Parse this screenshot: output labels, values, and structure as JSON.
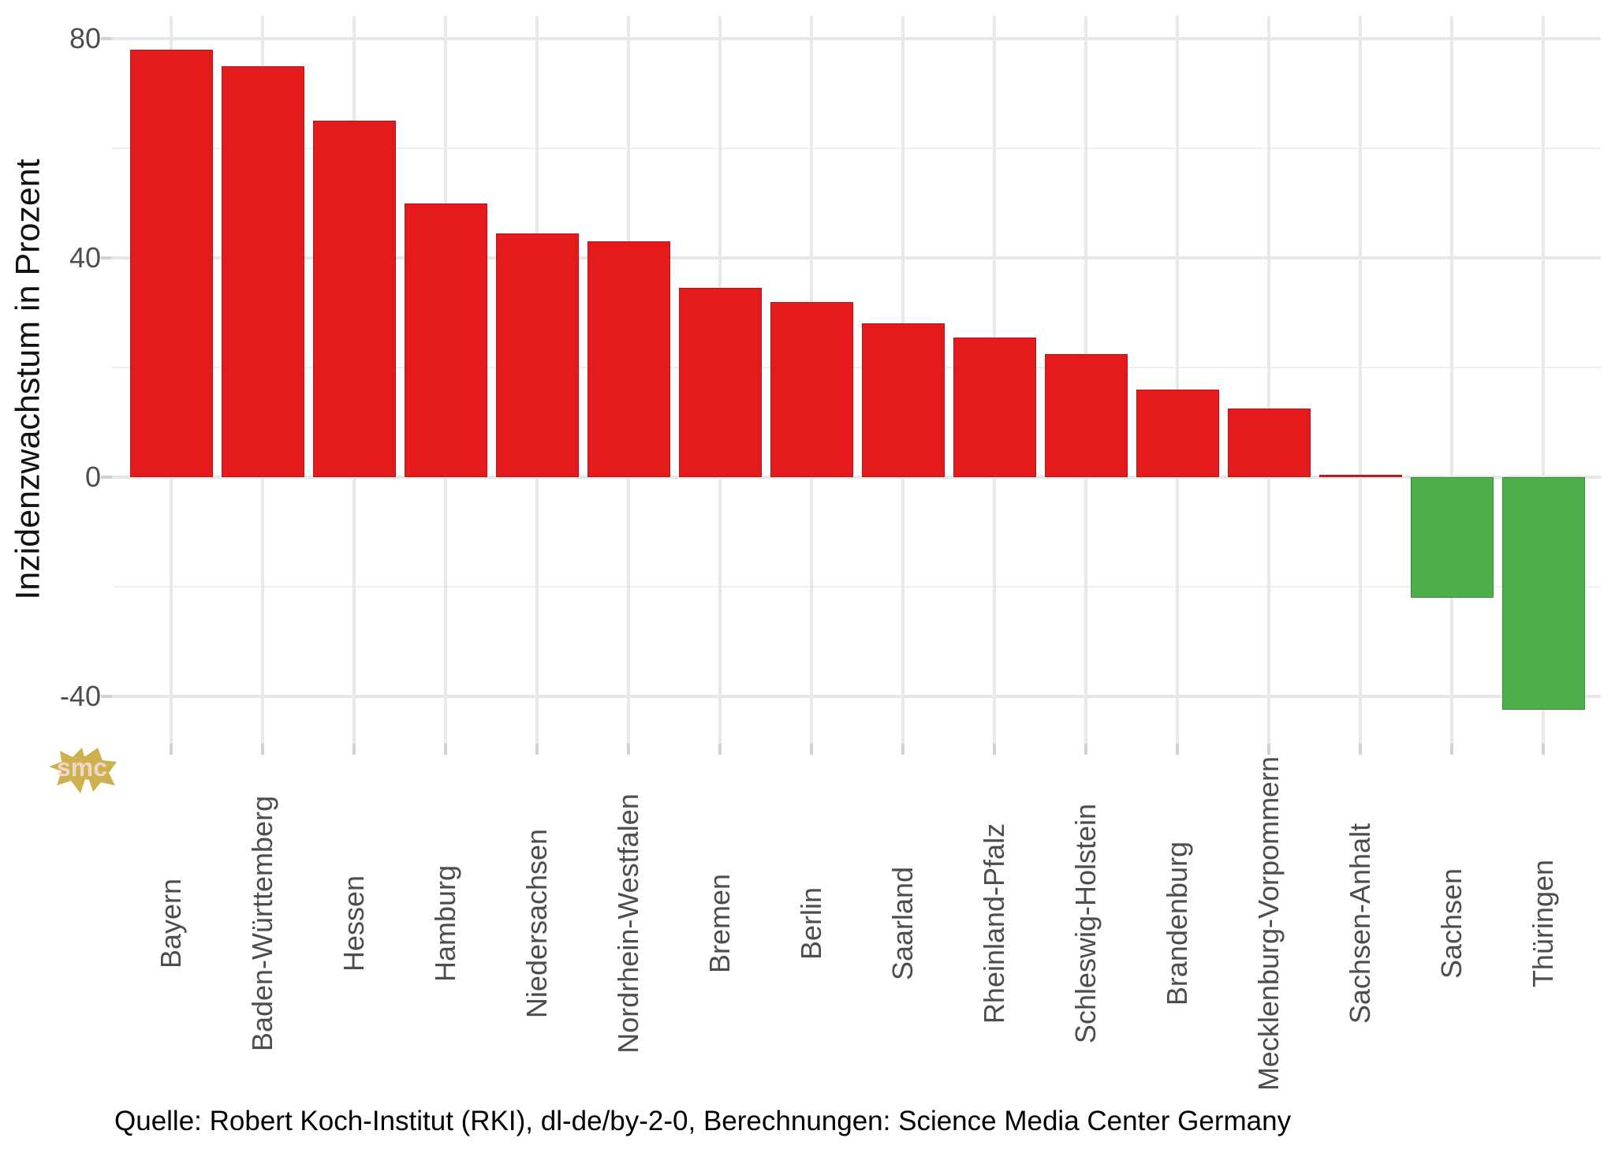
{
  "chart_data": {
    "type": "bar",
    "title": "",
    "xlabel": "",
    "ylabel": "Inzidenzwachstum in Prozent",
    "categories": [
      "Bayern",
      "Baden-Württemberg",
      "Hessen",
      "Hamburg",
      "Niedersachsen",
      "Nordrhein-Westfalen",
      "Bremen",
      "Berlin",
      "Saarland",
      "Rheinland-Pfalz",
      "Schleswig-Holstein",
      "Brandenburg",
      "Mecklenburg-Vorpommern",
      "Sachsen-Anhalt",
      "Sachsen",
      "Thüringen"
    ],
    "values": [
      78,
      75,
      65,
      50,
      44.5,
      43,
      34.5,
      32,
      28,
      25.5,
      22.5,
      16,
      12.5,
      0.5,
      -22,
      -42.5
    ],
    "ylim": [
      -48.5,
      84
    ],
    "yticks_major": [
      80,
      40,
      0,
      -40
    ],
    "yticks_minor": [
      60,
      20,
      -20
    ],
    "grid": "on",
    "legend": "none",
    "positive_color": "#e41a1c",
    "negative_color": "#4daf4a",
    "source_note": "Quelle: Robert Koch-Institut (RKI), dl-de/by-2-0, Berechnungen: Science Media Center Germany",
    "watermark_text": "smc",
    "watermark_color": "#ccb14e"
  }
}
